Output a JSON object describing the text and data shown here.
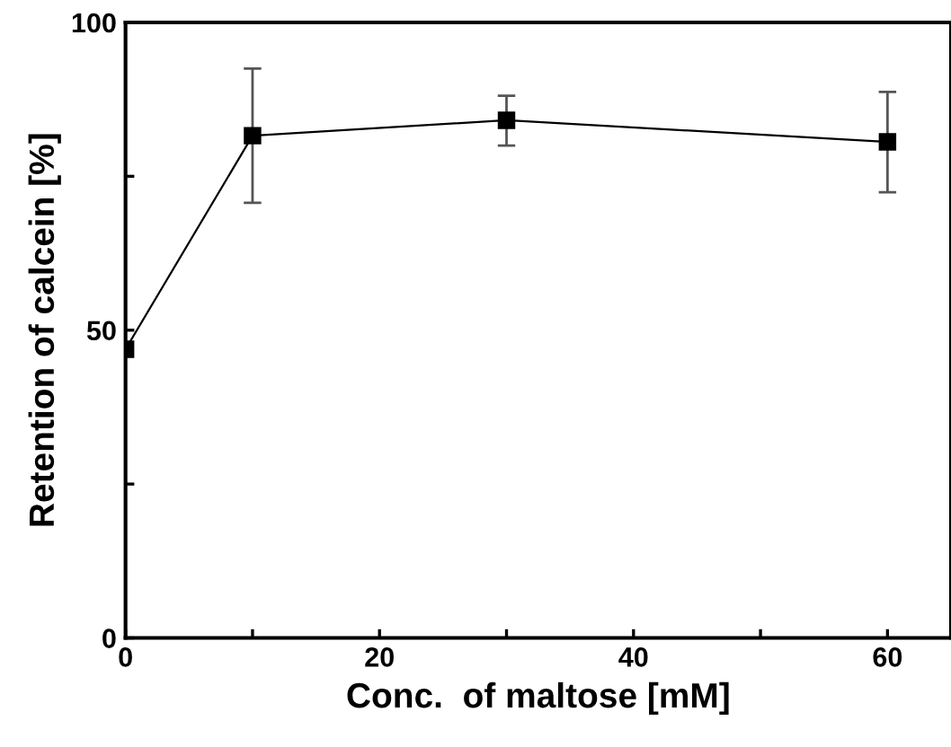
{
  "chart_data": {
    "type": "line",
    "xlabel": "Conc.  of maltose [mM]",
    "ylabel": "Retention of calcein [%]",
    "x": [
      0,
      10,
      30,
      60
    ],
    "series": [
      {
        "color": "#000000",
        "values": [
          46.9,
          81.6,
          84.1,
          80.6
        ],
        "errors": [
          null,
          [
            70.7,
            92.5
          ],
          [
            80.0,
            88.1
          ],
          [
            72.4,
            88.7
          ]
        ]
      }
    ],
    "marker": "square",
    "line_style": "solid",
    "xlim": [
      0,
      65
    ],
    "ylim": [
      0,
      100
    ],
    "xticks": [
      0,
      {
        "value": 10,
        "label": null
      },
      20,
      {
        "value": 30,
        "label": null
      },
      40,
      {
        "value": 50,
        "label": null
      },
      60
    ],
    "yticks": [
      0,
      {
        "value": 25,
        "label": null
      },
      50,
      {
        "value": 75,
        "label": null
      },
      100
    ],
    "grid": false,
    "legend": false
  }
}
